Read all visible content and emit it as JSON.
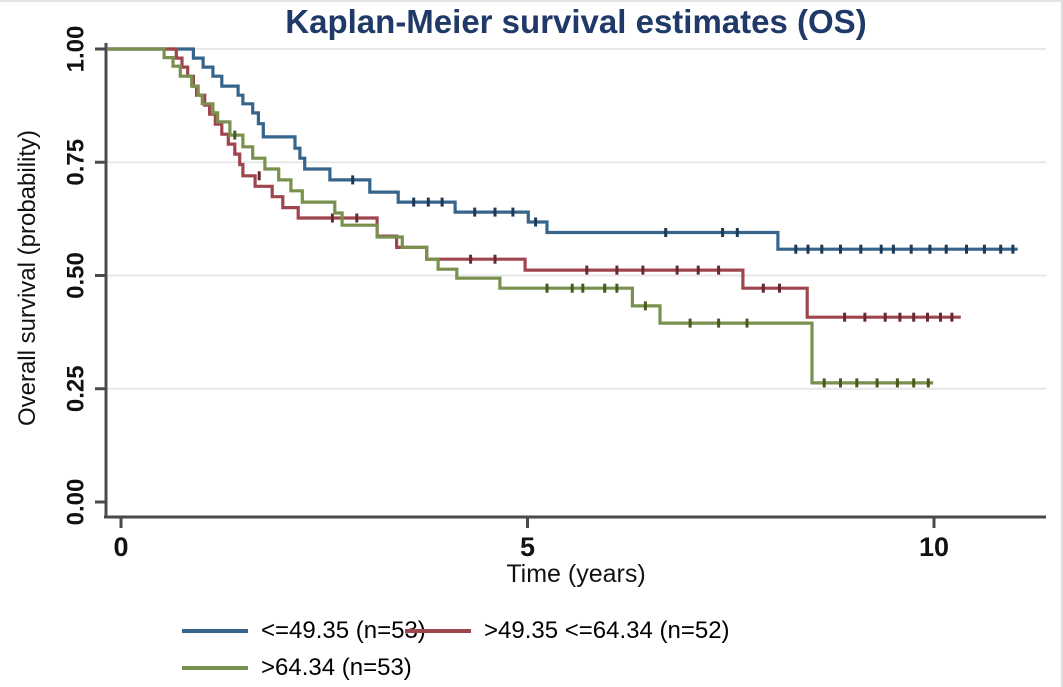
{
  "chart_data": {
    "type": "line",
    "subtype": "kaplan-meier-step",
    "title": "Kaplan-Meier survival estimates (OS)",
    "xlabel": "Time (years)",
    "ylabel": "Overall survival (probability)",
    "xlim": [
      0,
      11.3
    ],
    "ylim": [
      0,
      1
    ],
    "grid": "horizontal-light",
    "legend_position": "bottom",
    "x_ticks": [
      {
        "value": 0,
        "label": "0"
      },
      {
        "value": 5,
        "label": "5"
      },
      {
        "value": 10,
        "label": "10"
      }
    ],
    "y_ticks": [
      {
        "value": 0.0,
        "label": "0.00"
      },
      {
        "value": 0.25,
        "label": "0.25"
      },
      {
        "value": 0.5,
        "label": "0.50"
      },
      {
        "value": 0.75,
        "label": "0.75"
      },
      {
        "value": 1.0,
        "label": "1.00"
      }
    ],
    "colors": {
      "title": "#1f3a68",
      "axis": "#4a4a4a",
      "grid": "#e7e7e7",
      "text": "#111111"
    },
    "series": [
      {
        "name": "<=49.35 (n=53)",
        "color": "#36648b",
        "censor_color": "#1c3a55",
        "t_end": 11.03,
        "points": [
          [
            0,
            1.0
          ],
          [
            0.89,
            0.98
          ],
          [
            1.01,
            0.96
          ],
          [
            1.13,
            0.94
          ],
          [
            1.24,
            0.918
          ],
          [
            1.44,
            0.898
          ],
          [
            1.5,
            0.879
          ],
          [
            1.62,
            0.859
          ],
          [
            1.69,
            0.835
          ],
          [
            1.75,
            0.806
          ],
          [
            2.14,
            0.781
          ],
          [
            2.2,
            0.759
          ],
          [
            2.26,
            0.735
          ],
          [
            2.57,
            0.711
          ],
          [
            3.06,
            0.684
          ],
          [
            3.41,
            0.662
          ],
          [
            4.11,
            0.64
          ],
          [
            5.01,
            0.618
          ],
          [
            5.24,
            0.595
          ],
          [
            8.08,
            0.558
          ]
        ],
        "censors": [
          [
            2.85,
            0.711
          ],
          [
            3.6,
            0.662
          ],
          [
            3.78,
            0.662
          ],
          [
            3.95,
            0.662
          ],
          [
            4.35,
            0.64
          ],
          [
            4.6,
            0.64
          ],
          [
            4.82,
            0.64
          ],
          [
            5.1,
            0.618
          ],
          [
            6.7,
            0.595
          ],
          [
            7.4,
            0.595
          ],
          [
            7.58,
            0.595
          ],
          [
            8.3,
            0.558
          ],
          [
            8.45,
            0.558
          ],
          [
            8.62,
            0.558
          ],
          [
            8.85,
            0.558
          ],
          [
            9.1,
            0.558
          ],
          [
            9.35,
            0.558
          ],
          [
            9.5,
            0.558
          ],
          [
            9.72,
            0.558
          ],
          [
            9.95,
            0.558
          ],
          [
            10.15,
            0.558
          ],
          [
            10.4,
            0.558
          ],
          [
            10.62,
            0.558
          ],
          [
            10.82,
            0.558
          ],
          [
            10.97,
            0.558
          ]
        ]
      },
      {
        "name": ">49.35 <=64.34 (n=52)",
        "color": "#9e454d",
        "censor_color": "#652a30",
        "t_end": 10.33,
        "points": [
          [
            0,
            1.0
          ],
          [
            0.68,
            0.98
          ],
          [
            0.75,
            0.96
          ],
          [
            0.82,
            0.94
          ],
          [
            0.89,
            0.918
          ],
          [
            0.93,
            0.898
          ],
          [
            1.03,
            0.876
          ],
          [
            1.09,
            0.856
          ],
          [
            1.16,
            0.834
          ],
          [
            1.24,
            0.812
          ],
          [
            1.32,
            0.79
          ],
          [
            1.4,
            0.768
          ],
          [
            1.46,
            0.745
          ],
          [
            1.5,
            0.72
          ],
          [
            1.65,
            0.697
          ],
          [
            1.86,
            0.674
          ],
          [
            1.99,
            0.65
          ],
          [
            2.18,
            0.627
          ],
          [
            3.15,
            0.587
          ],
          [
            3.39,
            0.562
          ],
          [
            3.76,
            0.536
          ],
          [
            4.97,
            0.512
          ],
          [
            7.65,
            0.472
          ],
          [
            8.44,
            0.408
          ]
        ],
        "censors": [
          [
            1.7,
            0.72
          ],
          [
            2.6,
            0.627
          ],
          [
            2.9,
            0.627
          ],
          [
            4.3,
            0.536
          ],
          [
            4.6,
            0.536
          ],
          [
            5.73,
            0.512
          ],
          [
            6.1,
            0.512
          ],
          [
            6.42,
            0.512
          ],
          [
            6.84,
            0.512
          ],
          [
            7.1,
            0.512
          ],
          [
            7.35,
            0.512
          ],
          [
            7.9,
            0.472
          ],
          [
            8.1,
            0.472
          ],
          [
            8.9,
            0.408
          ],
          [
            9.15,
            0.408
          ],
          [
            9.4,
            0.408
          ],
          [
            9.58,
            0.408
          ],
          [
            9.75,
            0.408
          ],
          [
            9.92,
            0.408
          ],
          [
            10.08,
            0.408
          ],
          [
            10.22,
            0.408
          ]
        ]
      },
      {
        "name": ">64.34 (n=53)",
        "color": "#78914e",
        "censor_color": "#47591f",
        "t_end": 9.99,
        "points": [
          [
            0,
            1.0
          ],
          [
            0.53,
            0.981
          ],
          [
            0.64,
            0.962
          ],
          [
            0.73,
            0.94
          ],
          [
            0.87,
            0.918
          ],
          [
            0.95,
            0.898
          ],
          [
            1.0,
            0.879
          ],
          [
            1.13,
            0.859
          ],
          [
            1.19,
            0.839
          ],
          [
            1.34,
            0.81
          ],
          [
            1.5,
            0.784
          ],
          [
            1.62,
            0.759
          ],
          [
            1.77,
            0.735
          ],
          [
            1.94,
            0.711
          ],
          [
            2.09,
            0.687
          ],
          [
            2.23,
            0.662
          ],
          [
            2.63,
            0.638
          ],
          [
            2.72,
            0.611
          ],
          [
            3.15,
            0.585
          ],
          [
            3.46,
            0.562
          ],
          [
            3.76,
            0.536
          ],
          [
            3.9,
            0.514
          ],
          [
            4.13,
            0.494
          ],
          [
            4.66,
            0.472
          ],
          [
            6.29,
            0.433
          ],
          [
            6.63,
            0.395
          ],
          [
            8.5,
            0.263
          ]
        ],
        "censors": [
          [
            1.4,
            0.81
          ],
          [
            5.24,
            0.472
          ],
          [
            5.55,
            0.472
          ],
          [
            5.68,
            0.472
          ],
          [
            5.95,
            0.472
          ],
          [
            6.1,
            0.472
          ],
          [
            6.45,
            0.433
          ],
          [
            7.0,
            0.395
          ],
          [
            7.35,
            0.395
          ],
          [
            7.7,
            0.395
          ],
          [
            8.65,
            0.263
          ],
          [
            8.85,
            0.263
          ],
          [
            9.05,
            0.263
          ],
          [
            9.3,
            0.263
          ],
          [
            9.55,
            0.263
          ],
          [
            9.75,
            0.263
          ],
          [
            9.93,
            0.263
          ]
        ]
      }
    ]
  }
}
